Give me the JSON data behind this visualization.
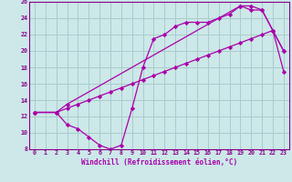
{
  "xlabel": "Windchill (Refroidissement éolien,°C)",
  "bg_color": "#cce8e8",
  "grid_color": "#aacccc",
  "line_color": "#aa00aa",
  "xlim": [
    -0.5,
    23.5
  ],
  "ylim": [
    8,
    26
  ],
  "xticks": [
    0,
    1,
    2,
    3,
    4,
    5,
    6,
    7,
    8,
    9,
    10,
    11,
    12,
    13,
    14,
    15,
    16,
    17,
    18,
    19,
    20,
    21,
    22,
    23
  ],
  "yticks": [
    8,
    10,
    12,
    14,
    16,
    18,
    20,
    22,
    24,
    26
  ],
  "series": [
    {
      "x": [
        0,
        2,
        3,
        4,
        5,
        6,
        7,
        8,
        9,
        10,
        11,
        12,
        13,
        14,
        15,
        16,
        17,
        18,
        19,
        20,
        21,
        22,
        23
      ],
      "y": [
        12.5,
        12.5,
        11.0,
        10.5,
        9.5,
        8.5,
        8.0,
        8.5,
        13.0,
        18.0,
        21.5,
        22.0,
        23.0,
        23.5,
        23.5,
        23.5,
        24.0,
        24.5,
        25.5,
        25.5,
        25.0,
        22.5,
        20.0
      ]
    },
    {
      "x": [
        0,
        2,
        3,
        4,
        5,
        6,
        7,
        8,
        9,
        10,
        11,
        12,
        13,
        14,
        15,
        16,
        17,
        18,
        19,
        20,
        21,
        22,
        23
      ],
      "y": [
        12.5,
        12.5,
        13.0,
        13.5,
        14.0,
        14.5,
        15.0,
        15.5,
        16.0,
        16.5,
        17.0,
        17.5,
        18.0,
        18.5,
        19.0,
        19.5,
        20.0,
        20.5,
        21.0,
        21.5,
        22.0,
        22.5,
        17.5
      ]
    },
    {
      "x": [
        0,
        2,
        3,
        19,
        20,
        21,
        22,
        23
      ],
      "y": [
        12.5,
        12.5,
        13.5,
        25.5,
        25.0,
        25.0,
        22.5,
        20.0
      ]
    }
  ]
}
